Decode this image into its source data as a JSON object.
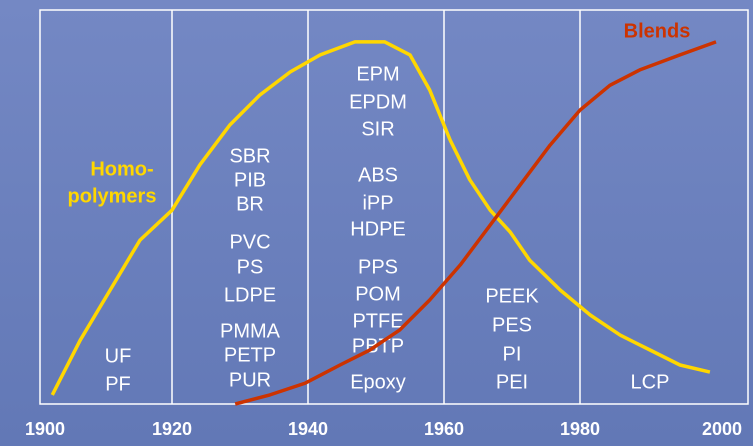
{
  "chart_data": {
    "type": "line",
    "xlim": [
      1900,
      2000
    ],
    "xticks": [
      1900,
      1920,
      1940,
      1960,
      1980,
      2000
    ],
    "ylim": [
      0,
      100
    ],
    "grid": true,
    "series": [
      {
        "name_lines": [
          "Homo-",
          "polymers"
        ],
        "color": "#ffd700",
        "x": [
          1902.4,
          1906.5,
          1910.9,
          1915.3,
          1920,
          1924.1,
          1928.5,
          1932.9,
          1937.4,
          1941.8,
          1946.9,
          1951.3,
          1955,
          1957.9,
          1960.9,
          1963.8,
          1966.8,
          1969.7,
          1972.6,
          1977.1,
          1981.5,
          1985.9,
          1990.3,
          1994.7,
          1999.1
        ],
        "values": [
          2.3,
          16.2,
          28.9,
          41.6,
          49.2,
          60.7,
          70.8,
          78.4,
          84.3,
          88.6,
          91.9,
          91.9,
          88.6,
          79.7,
          67,
          56.9,
          49.2,
          43.7,
          36.5,
          28.9,
          22.6,
          17.5,
          13.7,
          9.9,
          8.1
        ]
      },
      {
        "name": "Blends",
        "color": "#cc3300",
        "x": [
          1929.3,
          1934.4,
          1939.6,
          1944.7,
          1949.1,
          1953.5,
          1957.9,
          1962.4,
          1966.8,
          1971.2,
          1975.6,
          1980,
          1984.4,
          1988.8,
          1994.7,
          2000
        ],
        "values": [
          0,
          2.3,
          5.3,
          9.9,
          13.7,
          18.8,
          26.4,
          35.3,
          45.4,
          55.6,
          65.7,
          74.6,
          80.9,
          84.8,
          88.6,
          91.9
        ]
      }
    ],
    "polymer_groups": [
      [
        "UF",
        "PF"
      ],
      [
        "SBR",
        "PIB",
        "BR",
        "PVC",
        "PS",
        "LDPE",
        "PMMA",
        "PETP",
        "PUR"
      ],
      [
        "EPM",
        "EPDM",
        "SIR",
        "ABS",
        "iPP",
        "HDPE",
        "PPS",
        "POM",
        "PTFE",
        "PBTP",
        "Epoxy"
      ],
      [
        "PEEK",
        "PES",
        "PI",
        "PEI"
      ],
      [
        "LCP"
      ]
    ]
  }
}
